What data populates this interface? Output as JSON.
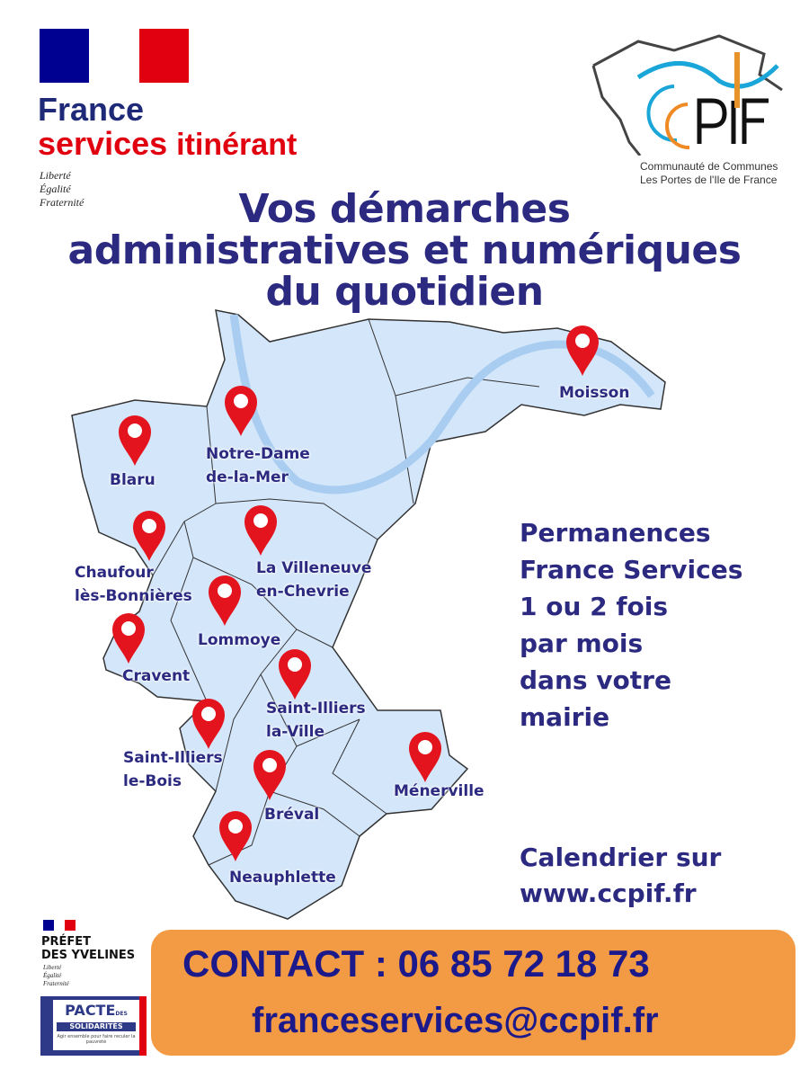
{
  "header": {
    "brand_line1": "France",
    "brand_line2": "services",
    "brand_suffix": "itinérant",
    "motto": [
      "Liberté",
      "Égalité",
      "Fraternité"
    ],
    "partner_logo": {
      "letters": "CCPIF",
      "line1": "Communauté de Communes",
      "line2": "Les Portes de l'Ile de France"
    }
  },
  "title": [
    "Vos démarches",
    "administratives et numériques",
    "du quotidien"
  ],
  "places": [
    {
      "name": [
        "Moisson"
      ]
    },
    {
      "name": [
        "Blaru"
      ]
    },
    {
      "name": [
        "Notre-Dame",
        "de-la-Mer"
      ]
    },
    {
      "name": [
        "Chaufour",
        "lès-Bonnières"
      ]
    },
    {
      "name": [
        "La Villeneuve",
        "en-Chevrie"
      ]
    },
    {
      "name": [
        "Lommoye"
      ]
    },
    {
      "name": [
        "Cravent"
      ]
    },
    {
      "name": [
        "Saint-Illiers",
        "la-Ville"
      ]
    },
    {
      "name": [
        "Saint-Illiers",
        "le-Bois"
      ]
    },
    {
      "name": [
        "Ménerville"
      ]
    },
    {
      "name": [
        "Bréval"
      ]
    },
    {
      "name": [
        "Neauphlette"
      ]
    }
  ],
  "permanences": [
    "Permanences",
    "France Services",
    "1 ou 2 fois",
    "par mois",
    "dans votre",
    "mairie"
  ],
  "calendar": [
    "Calendrier sur",
    "www.ccpif.fr"
  ],
  "contact": {
    "phone": "CONTACT : 06 85 72 18 73",
    "email": "franceservices@ccpif.fr"
  },
  "footer": {
    "prefet": [
      "PRÉFET",
      "DES YVELINES"
    ],
    "motto": [
      "Liberté",
      "Égalité",
      "Fraternité"
    ],
    "pacte": {
      "title": "PACTE",
      "des": "DES",
      "sub": "SOLIDARITÉS",
      "tagline": "Agir ensemble pour faire reculer la pauvreté"
    }
  },
  "colors": {
    "navy": "#2c2a80",
    "france_blue": "#000091",
    "france_red": "#e1000f",
    "pin_red": "#e4141e",
    "map_fill": "#d4e6fa",
    "river": "#a9cdf0",
    "contact_bg": "#f39a44"
  }
}
